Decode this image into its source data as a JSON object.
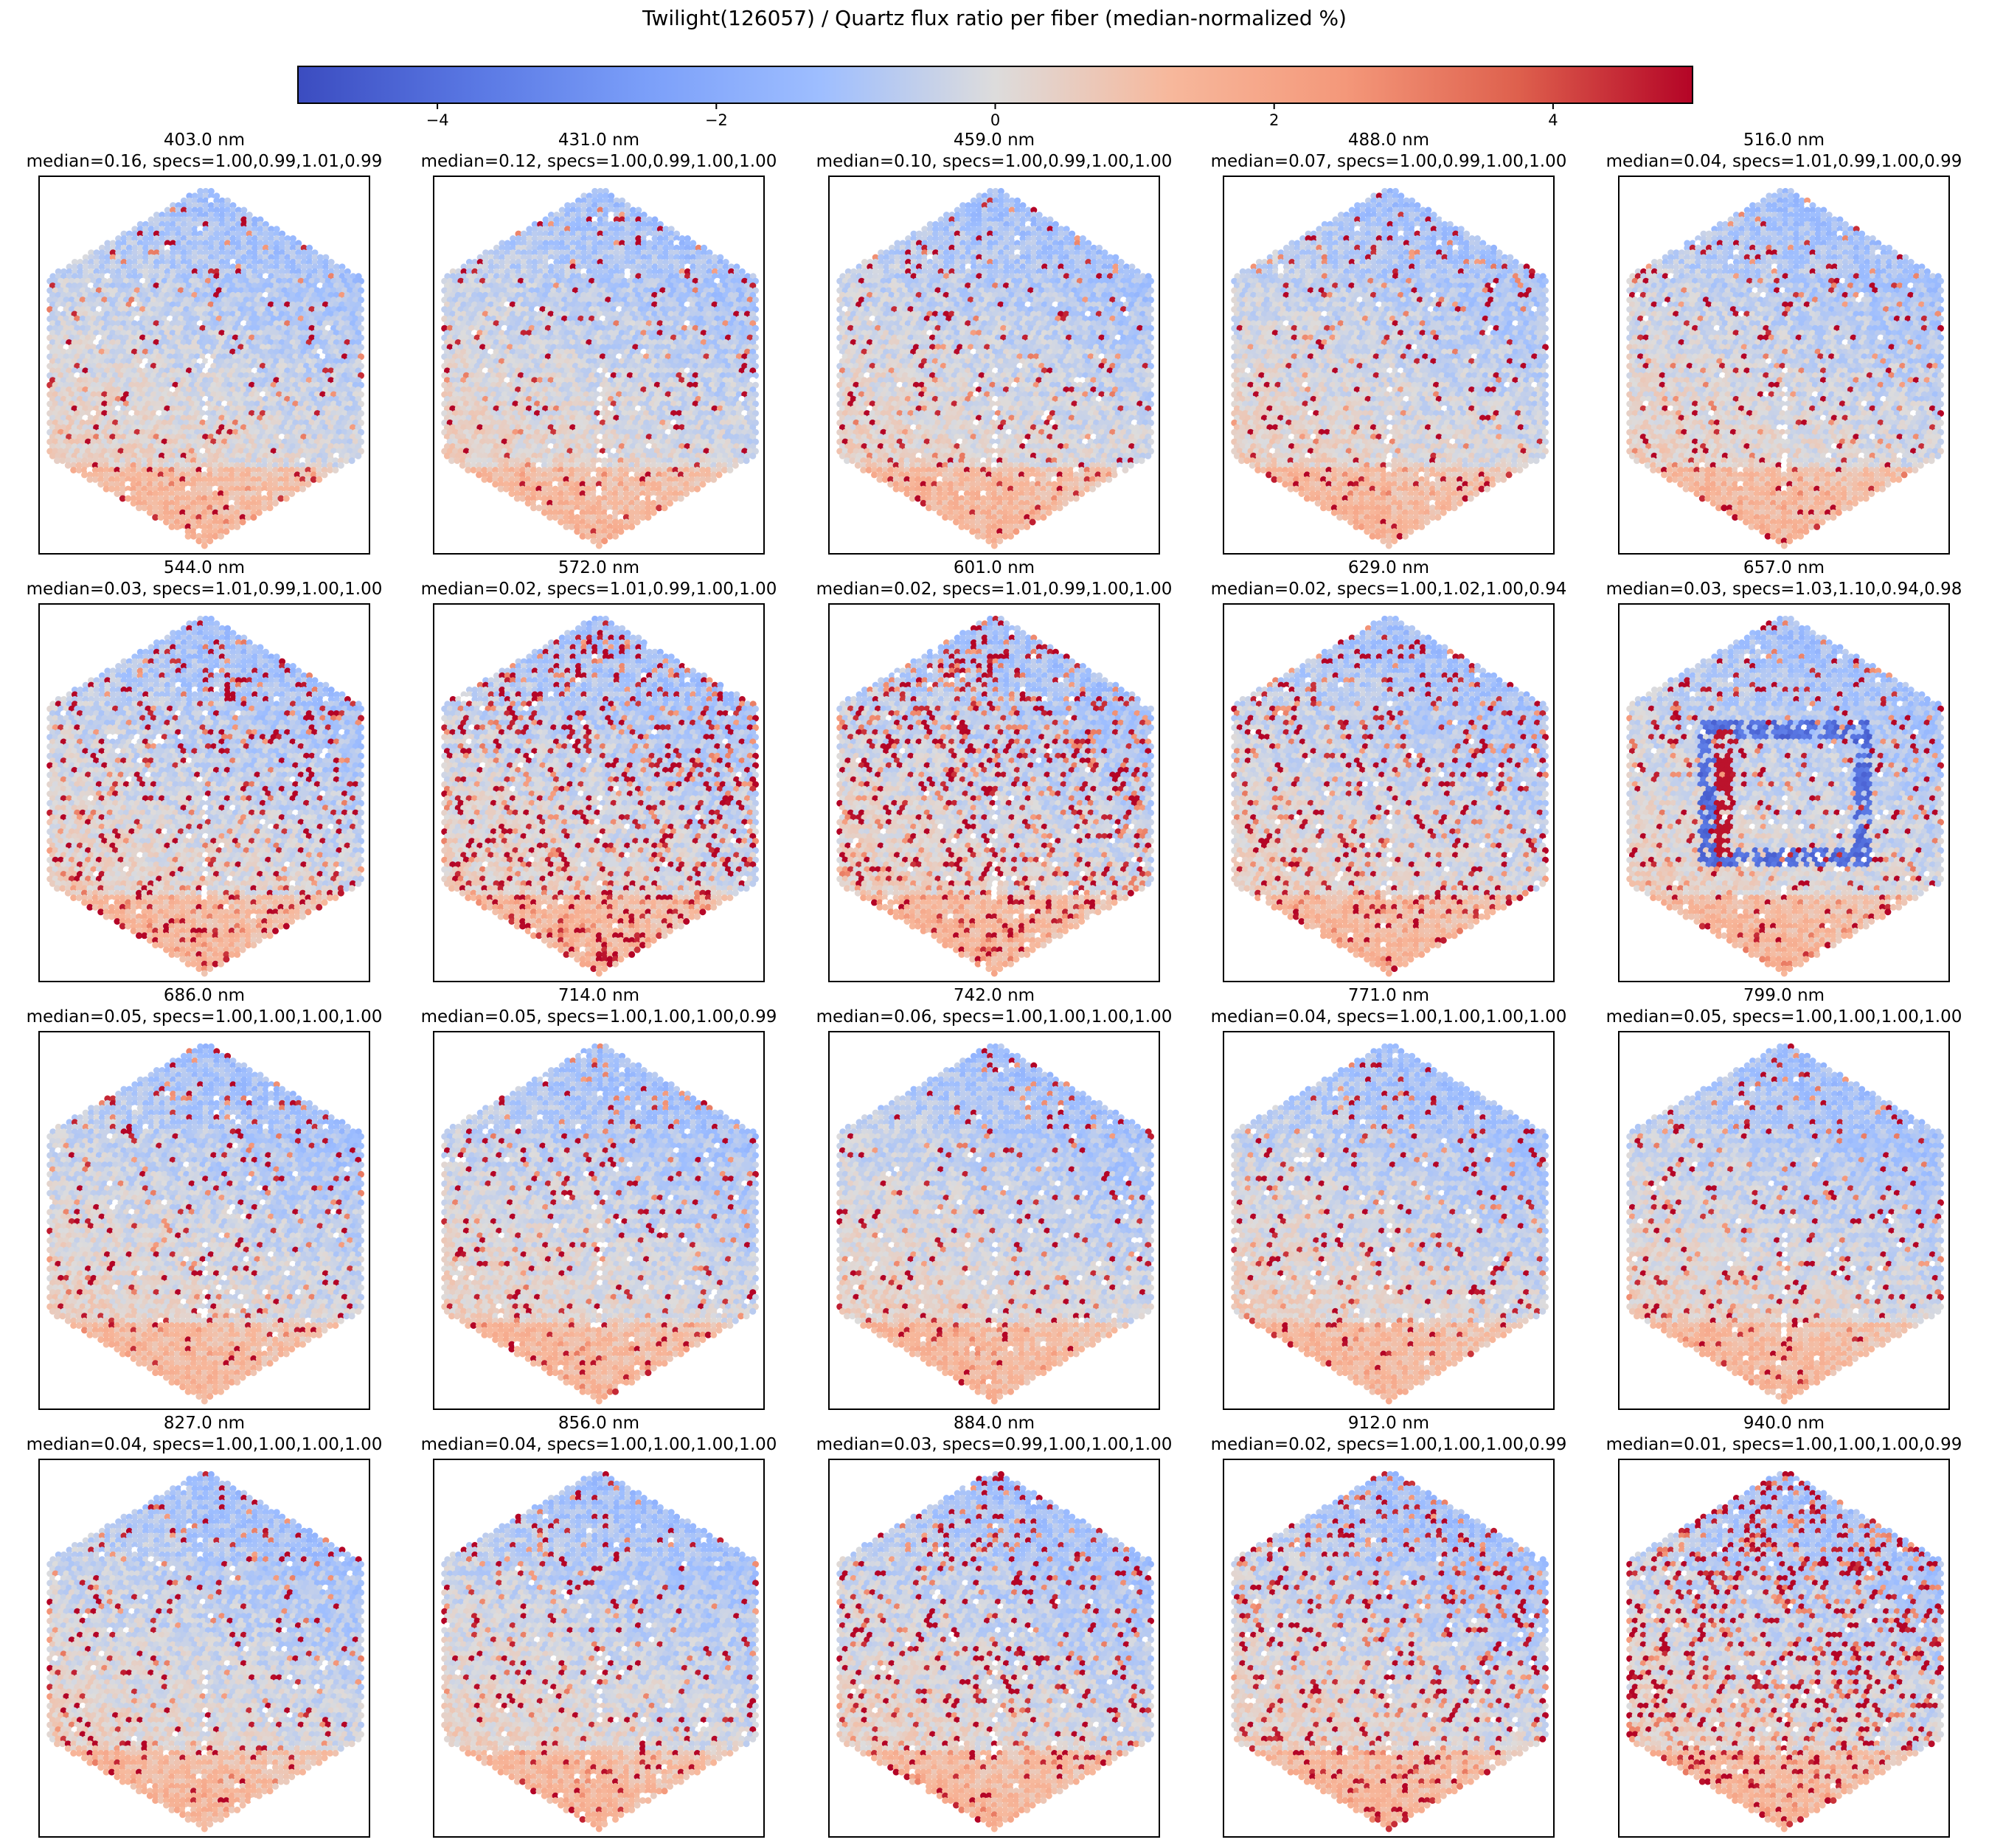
{
  "figure": {
    "title": "Twilight(126057) / Quartz flux ratio per fiber (median-normalized %)"
  },
  "colorbar": {
    "colormap": "coolwarm",
    "vmin": -5,
    "vmax": 5,
    "ticks": [
      -4,
      -2,
      0,
      2,
      4
    ],
    "tick_labels": [
      "−4",
      "−2",
      "0",
      "2",
      "4"
    ],
    "colors": {
      "low": "#3b4cc0",
      "mid": "#dddddd",
      "high": "#b40426"
    }
  },
  "chart_data": {
    "type": "heatmap",
    "description_units": "percent",
    "grid": "5x4 small multiples of hexagonal fiber IFU maps",
    "panels": [
      {
        "wavelength": "403.0 nm",
        "median": 0.16,
        "specs": [
          1.0,
          0.99,
          1.01,
          0.99
        ],
        "title": "403.0 nm",
        "subtitle": "median=0.16, specs=1.00,0.99,1.01,0.99"
      },
      {
        "wavelength": "431.0 nm",
        "median": 0.12,
        "specs": [
          1.0,
          0.99,
          1.0,
          1.0
        ],
        "title": "431.0 nm",
        "subtitle": "median=0.12, specs=1.00,0.99,1.00,1.00"
      },
      {
        "wavelength": "459.0 nm",
        "median": 0.1,
        "specs": [
          1.0,
          0.99,
          1.0,
          1.0
        ],
        "title": "459.0 nm",
        "subtitle": "median=0.10, specs=1.00,0.99,1.00,1.00"
      },
      {
        "wavelength": "488.0 nm",
        "median": 0.07,
        "specs": [
          1.0,
          0.99,
          1.0,
          1.0
        ],
        "title": "488.0 nm",
        "subtitle": "median=0.07, specs=1.00,0.99,1.00,1.00"
      },
      {
        "wavelength": "516.0 nm",
        "median": 0.04,
        "specs": [
          1.01,
          0.99,
          1.0,
          0.99
        ],
        "title": "516.0 nm",
        "subtitle": "median=0.04, specs=1.01,0.99,1.00,0.99"
      },
      {
        "wavelength": "544.0 nm",
        "median": 0.03,
        "specs": [
          1.01,
          0.99,
          1.0,
          1.0
        ],
        "title": "544.0 nm",
        "subtitle": "median=0.03, specs=1.01,0.99,1.00,1.00"
      },
      {
        "wavelength": "572.0 nm",
        "median": 0.02,
        "specs": [
          1.01,
          0.99,
          1.0,
          1.0
        ],
        "title": "572.0 nm",
        "subtitle": "median=0.02, specs=1.01,0.99,1.00,1.00"
      },
      {
        "wavelength": "601.0 nm",
        "median": 0.02,
        "specs": [
          1.01,
          0.99,
          1.0,
          1.0
        ],
        "title": "601.0 nm",
        "subtitle": "median=0.02, specs=1.01,0.99,1.00,1.00"
      },
      {
        "wavelength": "629.0 nm",
        "median": 0.02,
        "specs": [
          1.0,
          1.02,
          1.0,
          0.94
        ],
        "title": "629.0 nm",
        "subtitle": "median=0.02, specs=1.00,1.02,1.00,0.94"
      },
      {
        "wavelength": "657.0 nm",
        "median": 0.03,
        "specs": [
          1.03,
          1.1,
          0.94,
          0.98
        ],
        "title": "657.0 nm",
        "subtitle": "median=0.03, specs=1.03,1.10,0.94,0.98"
      },
      {
        "wavelength": "686.0 nm",
        "median": 0.05,
        "specs": [
          1.0,
          1.0,
          1.0,
          1.0
        ],
        "title": "686.0 nm",
        "subtitle": "median=0.05, specs=1.00,1.00,1.00,1.00"
      },
      {
        "wavelength": "714.0 nm",
        "median": 0.05,
        "specs": [
          1.0,
          1.0,
          1.0,
          0.99
        ],
        "title": "714.0 nm",
        "subtitle": "median=0.05, specs=1.00,1.00,1.00,0.99"
      },
      {
        "wavelength": "742.0 nm",
        "median": 0.06,
        "specs": [
          1.0,
          1.0,
          1.0,
          1.0
        ],
        "title": "742.0 nm",
        "subtitle": "median=0.06, specs=1.00,1.00,1.00,1.00"
      },
      {
        "wavelength": "771.0 nm",
        "median": 0.04,
        "specs": [
          1.0,
          1.0,
          1.0,
          1.0
        ],
        "title": "771.0 nm",
        "subtitle": "median=0.04, specs=1.00,1.00,1.00,1.00"
      },
      {
        "wavelength": "799.0 nm",
        "median": 0.05,
        "specs": [
          1.0,
          1.0,
          1.0,
          1.0
        ],
        "title": "799.0 nm",
        "subtitle": "median=0.05, specs=1.00,1.00,1.00,1.00"
      },
      {
        "wavelength": "827.0 nm",
        "median": 0.04,
        "specs": [
          1.0,
          1.0,
          1.0,
          1.0
        ],
        "title": "827.0 nm",
        "subtitle": "median=0.04, specs=1.00,1.00,1.00,1.00"
      },
      {
        "wavelength": "856.0 nm",
        "median": 0.04,
        "specs": [
          1.0,
          1.0,
          1.0,
          1.0
        ],
        "title": "856.0 nm",
        "subtitle": "median=0.04, specs=1.00,1.00,1.00,1.00"
      },
      {
        "wavelength": "884.0 nm",
        "median": 0.03,
        "specs": [
          0.99,
          1.0,
          1.0,
          1.0
        ],
        "title": "884.0 nm",
        "subtitle": "median=0.03, specs=0.99,1.00,1.00,1.00"
      },
      {
        "wavelength": "912.0 nm",
        "median": 0.02,
        "specs": [
          1.0,
          1.0,
          1.0,
          0.99
        ],
        "title": "912.0 nm",
        "subtitle": "median=0.02, specs=1.00,1.00,1.00,0.99"
      },
      {
        "wavelength": "940.0 nm",
        "median": 0.01,
        "specs": [
          1.0,
          1.0,
          1.0,
          0.99
        ],
        "title": "940.0 nm",
        "subtitle": "median=0.01, specs=1.00,1.00,1.00,0.99"
      }
    ]
  }
}
